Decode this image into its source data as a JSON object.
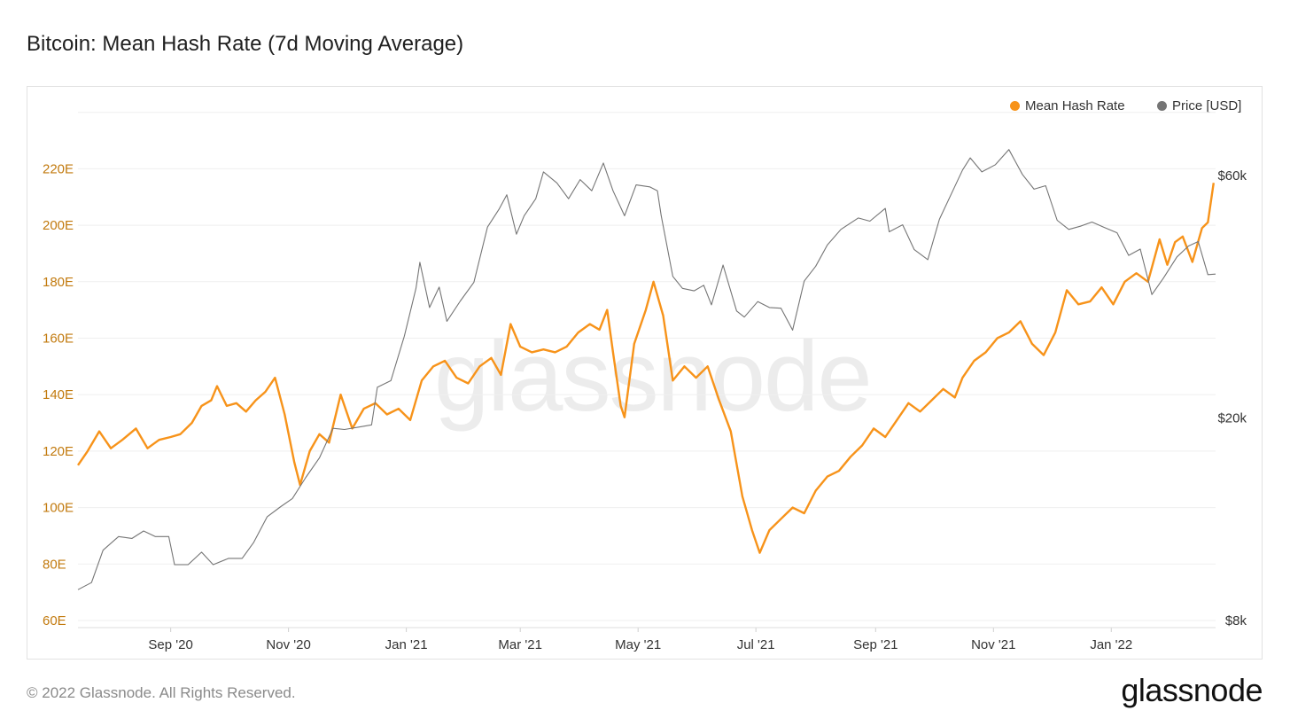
{
  "title": "Bitcoin: Mean Hash Rate (7d Moving Average)",
  "footer": {
    "copyright": "© 2022 Glassnode. All Rights Reserved.",
    "logo_text": "glassnode"
  },
  "watermark": "glassnode",
  "colors": {
    "hash": "#f7931a",
    "price": "#757575",
    "left_axis": "#c27a0e",
    "grid": "#efefef"
  },
  "chart_data": {
    "type": "line",
    "title": "Bitcoin: Mean Hash Rate (7d Moving Average)",
    "legend_position": "top-right",
    "grid": true,
    "x_ticks": [
      "Sep '20",
      "Nov '20",
      "Jan '21",
      "Mar '21",
      "May '21",
      "Jul '21",
      "Sep '21",
      "Nov '21",
      "Jan '22"
    ],
    "y_left_ticks": [
      "60E",
      "80E",
      "100E",
      "120E",
      "140E",
      "160E",
      "180E",
      "200E",
      "220E"
    ],
    "y_right_ticks": [
      "$8k",
      "$20k",
      "$60k"
    ],
    "y_left_range": [
      60,
      240
    ],
    "y_right_scale": "log",
    "y_right_range": [
      8000,
      90000
    ],
    "series": [
      {
        "name": "Mean Hash Rate",
        "axis": "left",
        "points": [
          [
            "2020-07-15",
            115
          ],
          [
            "2020-07-20",
            120
          ],
          [
            "2020-07-26",
            127
          ],
          [
            "2020-08-01",
            121
          ],
          [
            "2020-08-07",
            124
          ],
          [
            "2020-08-14",
            128
          ],
          [
            "2020-08-20",
            121
          ],
          [
            "2020-08-26",
            124
          ],
          [
            "2020-09-01",
            125
          ],
          [
            "2020-09-06",
            126
          ],
          [
            "2020-09-12",
            130
          ],
          [
            "2020-09-17",
            136
          ],
          [
            "2020-09-22",
            138
          ],
          [
            "2020-09-25",
            143
          ],
          [
            "2020-09-30",
            136
          ],
          [
            "2020-10-05",
            137
          ],
          [
            "2020-10-10",
            134
          ],
          [
            "2020-10-15",
            138
          ],
          [
            "2020-10-20",
            141
          ],
          [
            "2020-10-25",
            146
          ],
          [
            "2020-10-30",
            133
          ],
          [
            "2020-11-04",
            116
          ],
          [
            "2020-11-07",
            108
          ],
          [
            "2020-11-12",
            120
          ],
          [
            "2020-11-17",
            126
          ],
          [
            "2020-11-22",
            123
          ],
          [
            "2020-11-28",
            140
          ],
          [
            "2020-12-04",
            128
          ],
          [
            "2020-12-10",
            135
          ],
          [
            "2020-12-16",
            137
          ],
          [
            "2020-12-22",
            133
          ],
          [
            "2020-12-28",
            135
          ],
          [
            "2021-01-03",
            131
          ],
          [
            "2021-01-09",
            145
          ],
          [
            "2021-01-15",
            150
          ],
          [
            "2021-01-21",
            152
          ],
          [
            "2021-01-27",
            146
          ],
          [
            "2021-02-02",
            144
          ],
          [
            "2021-02-08",
            150
          ],
          [
            "2021-02-14",
            153
          ],
          [
            "2021-02-19",
            147
          ],
          [
            "2021-02-24",
            165
          ],
          [
            "2021-03-01",
            157
          ],
          [
            "2021-03-07",
            155
          ],
          [
            "2021-03-13",
            156
          ],
          [
            "2021-03-19",
            155
          ],
          [
            "2021-03-25",
            157
          ],
          [
            "2021-03-31",
            162
          ],
          [
            "2021-04-06",
            165
          ],
          [
            "2021-04-11",
            163
          ],
          [
            "2021-04-15",
            170
          ],
          [
            "2021-04-18",
            155
          ],
          [
            "2021-04-22",
            136
          ],
          [
            "2021-04-24",
            132
          ],
          [
            "2021-04-29",
            158
          ],
          [
            "2021-05-05",
            170
          ],
          [
            "2021-05-09",
            180
          ],
          [
            "2021-05-14",
            168
          ],
          [
            "2021-05-19",
            145
          ],
          [
            "2021-05-25",
            150
          ],
          [
            "2021-05-31",
            146
          ],
          [
            "2021-06-06",
            150
          ],
          [
            "2021-06-12",
            138
          ],
          [
            "2021-06-18",
            127
          ],
          [
            "2021-06-24",
            104
          ],
          [
            "2021-06-29",
            92
          ],
          [
            "2021-07-03",
            84
          ],
          [
            "2021-07-08",
            92
          ],
          [
            "2021-07-14",
            96
          ],
          [
            "2021-07-20",
            100
          ],
          [
            "2021-07-26",
            98
          ],
          [
            "2021-08-01",
            106
          ],
          [
            "2021-08-07",
            111
          ],
          [
            "2021-08-13",
            113
          ],
          [
            "2021-08-19",
            118
          ],
          [
            "2021-08-25",
            122
          ],
          [
            "2021-08-31",
            128
          ],
          [
            "2021-09-06",
            125
          ],
          [
            "2021-09-12",
            131
          ],
          [
            "2021-09-18",
            137
          ],
          [
            "2021-09-24",
            134
          ],
          [
            "2021-09-30",
            138
          ],
          [
            "2021-10-06",
            142
          ],
          [
            "2021-10-12",
            139
          ],
          [
            "2021-10-16",
            146
          ],
          [
            "2021-10-22",
            152
          ],
          [
            "2021-10-28",
            155
          ],
          [
            "2021-11-03",
            160
          ],
          [
            "2021-11-09",
            162
          ],
          [
            "2021-11-15",
            166
          ],
          [
            "2021-11-21",
            158
          ],
          [
            "2021-11-27",
            154
          ],
          [
            "2021-12-03",
            162
          ],
          [
            "2021-12-09",
            177
          ],
          [
            "2021-12-15",
            172
          ],
          [
            "2021-12-21",
            173
          ],
          [
            "2021-12-27",
            178
          ],
          [
            "2022-01-02",
            172
          ],
          [
            "2022-01-08",
            180
          ],
          [
            "2022-01-14",
            183
          ],
          [
            "2022-01-20",
            180
          ],
          [
            "2022-01-26",
            195
          ],
          [
            "2022-01-30",
            186
          ],
          [
            "2022-02-03",
            194
          ],
          [
            "2022-02-07",
            196
          ],
          [
            "2022-02-12",
            187
          ],
          [
            "2022-02-17",
            199
          ],
          [
            "2022-02-20",
            201
          ],
          [
            "2022-02-23",
            215
          ]
        ]
      },
      {
        "name": "Price [USD]",
        "axis": "right",
        "points": [
          [
            "2020-07-15",
            9200
          ],
          [
            "2020-07-22",
            9500
          ],
          [
            "2020-07-28",
            11000
          ],
          [
            "2020-08-05",
            11700
          ],
          [
            "2020-08-12",
            11600
          ],
          [
            "2020-08-18",
            12000
          ],
          [
            "2020-08-24",
            11700
          ],
          [
            "2020-08-31",
            11700
          ],
          [
            "2020-09-03",
            10300
          ],
          [
            "2020-09-10",
            10300
          ],
          [
            "2020-09-17",
            10900
          ],
          [
            "2020-09-23",
            10300
          ],
          [
            "2020-10-01",
            10600
          ],
          [
            "2020-10-08",
            10600
          ],
          [
            "2020-10-14",
            11400
          ],
          [
            "2020-10-21",
            12800
          ],
          [
            "2020-10-28",
            13400
          ],
          [
            "2020-11-03",
            13900
          ],
          [
            "2020-11-10",
            15300
          ],
          [
            "2020-11-17",
            16700
          ],
          [
            "2020-11-24",
            19100
          ],
          [
            "2020-11-30",
            19000
          ],
          [
            "2020-12-07",
            19200
          ],
          [
            "2020-12-14",
            19400
          ],
          [
            "2020-12-17",
            23000
          ],
          [
            "2020-12-24",
            23700
          ],
          [
            "2020-12-31",
            29000
          ],
          [
            "2021-01-06",
            36000
          ],
          [
            "2021-01-08",
            40500
          ],
          [
            "2021-01-13",
            33000
          ],
          [
            "2021-01-18",
            36200
          ],
          [
            "2021-01-22",
            31000
          ],
          [
            "2021-01-29",
            34000
          ],
          [
            "2021-02-05",
            37000
          ],
          [
            "2021-02-12",
            47500
          ],
          [
            "2021-02-18",
            51500
          ],
          [
            "2021-02-22",
            55000
          ],
          [
            "2021-02-27",
            46000
          ],
          [
            "2021-03-03",
            50000
          ],
          [
            "2021-03-09",
            54000
          ],
          [
            "2021-03-13",
            61000
          ],
          [
            "2021-03-20",
            58000
          ],
          [
            "2021-03-26",
            54000
          ],
          [
            "2021-04-01",
            58900
          ],
          [
            "2021-04-07",
            56000
          ],
          [
            "2021-04-13",
            63500
          ],
          [
            "2021-04-18",
            56000
          ],
          [
            "2021-04-24",
            50000
          ],
          [
            "2021-04-30",
            57500
          ],
          [
            "2021-05-07",
            57000
          ],
          [
            "2021-05-11",
            56000
          ],
          [
            "2021-05-13",
            50000
          ],
          [
            "2021-05-19",
            38000
          ],
          [
            "2021-05-24",
            36000
          ],
          [
            "2021-05-30",
            35600
          ],
          [
            "2021-06-04",
            36500
          ],
          [
            "2021-06-08",
            33400
          ],
          [
            "2021-06-14",
            40000
          ],
          [
            "2021-06-21",
            32500
          ],
          [
            "2021-06-25",
            31600
          ],
          [
            "2021-07-02",
            33900
          ],
          [
            "2021-07-08",
            33000
          ],
          [
            "2021-07-14",
            32900
          ],
          [
            "2021-07-20",
            29800
          ],
          [
            "2021-07-26",
            37200
          ],
          [
            "2021-08-01",
            39800
          ],
          [
            "2021-08-07",
            43800
          ],
          [
            "2021-08-14",
            47000
          ],
          [
            "2021-08-23",
            49500
          ],
          [
            "2021-08-29",
            48800
          ],
          [
            "2021-09-06",
            51700
          ],
          [
            "2021-09-08",
            46500
          ],
          [
            "2021-09-15",
            48000
          ],
          [
            "2021-09-21",
            42900
          ],
          [
            "2021-09-28",
            41000
          ],
          [
            "2021-10-04",
            49200
          ],
          [
            "2021-10-10",
            55000
          ],
          [
            "2021-10-16",
            61500
          ],
          [
            "2021-10-20",
            65000
          ],
          [
            "2021-10-26",
            61000
          ],
          [
            "2021-11-02",
            63000
          ],
          [
            "2021-11-09",
            67500
          ],
          [
            "2021-11-16",
            60300
          ],
          [
            "2021-11-22",
            56400
          ],
          [
            "2021-11-28",
            57300
          ],
          [
            "2021-12-04",
            49000
          ],
          [
            "2021-12-10",
            47000
          ],
          [
            "2021-12-16",
            47700
          ],
          [
            "2021-12-22",
            48600
          ],
          [
            "2021-12-28",
            47500
          ],
          [
            "2022-01-04",
            46300
          ],
          [
            "2022-01-10",
            41800
          ],
          [
            "2022-01-16",
            43000
          ],
          [
            "2022-01-22",
            35000
          ],
          [
            "2022-01-28",
            37700
          ],
          [
            "2022-02-04",
            41500
          ],
          [
            "2022-02-10",
            43600
          ],
          [
            "2022-02-15",
            44500
          ],
          [
            "2022-02-20",
            38300
          ],
          [
            "2022-02-24",
            38400
          ]
        ]
      }
    ]
  }
}
